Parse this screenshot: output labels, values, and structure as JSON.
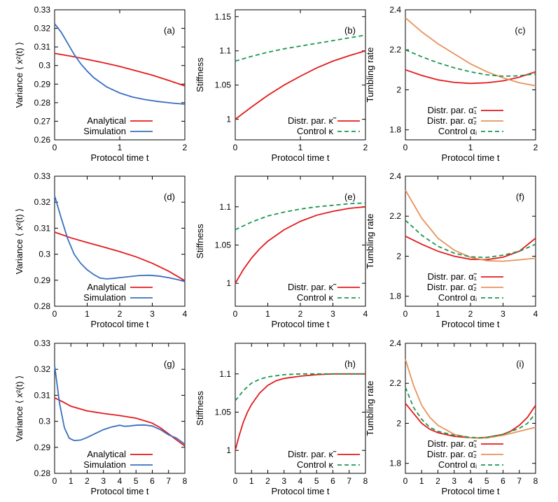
{
  "colors": {
    "red": "#e41a1c",
    "blue": "#3a6fbf",
    "orange": "#e8935a",
    "green": "#1a9850"
  },
  "chart_data": [
    {
      "type": "line",
      "panel_label": "(a)",
      "xlabel": "Protocol time t",
      "ylabel": "Variance  ⟨ x²(t) ⟩",
      "xlim": [
        0,
        2
      ],
      "ylim": [
        0.26,
        0.33
      ],
      "x_ticks": [
        0,
        1,
        2
      ],
      "x_tick_labels": [
        "0",
        "1",
        "2"
      ],
      "y_ticks": [
        0.26,
        0.27,
        0.28,
        0.29,
        0.3,
        0.31,
        0.32,
        0.33
      ],
      "y_tick_labels": [
        "0.26",
        "0.27",
        "0.28",
        "0.29",
        "0.3",
        "0.31",
        "0.32",
        "0.33"
      ],
      "legend_position": "bottom-left",
      "series": [
        {
          "name": "Analytical",
          "color": "red",
          "dash": false,
          "x": [
            0,
            0.25,
            0.5,
            0.75,
            1,
            1.25,
            1.5,
            1.75,
            2
          ],
          "y": [
            0.3065,
            0.305,
            0.3033,
            0.3015,
            0.2995,
            0.2972,
            0.2948,
            0.292,
            0.289
          ]
        },
        {
          "name": "Simulation",
          "color": "blue",
          "dash": false,
          "x": [
            0,
            0.1,
            0.2,
            0.3,
            0.4,
            0.5,
            0.6,
            0.8,
            1,
            1.2,
            1.4,
            1.6,
            1.8,
            2
          ],
          "y": [
            0.3225,
            0.318,
            0.312,
            0.306,
            0.301,
            0.297,
            0.2935,
            0.2885,
            0.2852,
            0.283,
            0.2816,
            0.2806,
            0.2798,
            0.2792
          ]
        }
      ]
    },
    {
      "type": "line",
      "panel_label": "(b)",
      "xlabel": "Protocol time t",
      "ylabel": "Stiffness",
      "xlim": [
        0,
        2
      ],
      "ylim": [
        0.97,
        1.16
      ],
      "x_ticks": [
        0,
        1,
        2
      ],
      "x_tick_labels": [
        "0",
        "1",
        "2"
      ],
      "y_ticks": [
        1,
        1.05,
        1.1,
        1.15
      ],
      "y_tick_labels": [
        "1",
        "1.05",
        "1.1",
        "1.15"
      ],
      "legend_position": "bottom-right",
      "series": [
        {
          "name": "Distr. par. κ̃",
          "color": "red",
          "dash": false,
          "x": [
            0,
            0.25,
            0.5,
            0.75,
            1,
            1.25,
            1.5,
            1.75,
            2
          ],
          "y": [
            1.0,
            1.018,
            1.035,
            1.05,
            1.063,
            1.075,
            1.085,
            1.093,
            1.1
          ]
        },
        {
          "name": "Control κ",
          "color": "green",
          "dash": true,
          "x": [
            0,
            0.25,
            0.5,
            0.75,
            1,
            1.25,
            1.5,
            1.75,
            2
          ],
          "y": [
            1.085,
            1.092,
            1.098,
            1.103,
            1.107,
            1.111,
            1.115,
            1.119,
            1.123
          ]
        }
      ]
    },
    {
      "type": "line",
      "panel_label": "(c)",
      "xlabel": "Protocol time t",
      "ylabel": "Tumbling rate",
      "xlim": [
        0,
        2
      ],
      "ylim": [
        1.75,
        2.4
      ],
      "x_ticks": [
        0,
        1,
        2
      ],
      "x_tick_labels": [
        "0",
        "1",
        "2"
      ],
      "y_ticks": [
        1.8,
        2,
        2.2,
        2.4
      ],
      "y_tick_labels": [
        "1.8",
        "2",
        "2.2",
        "2.4"
      ],
      "legend_position": "bottom-left",
      "series": [
        {
          "name": "Distr. par. α̃₁",
          "color": "red",
          "dash": false,
          "x": [
            0,
            0.25,
            0.5,
            0.75,
            1,
            1.25,
            1.5,
            1.75,
            2
          ],
          "y": [
            2.1,
            2.072,
            2.05,
            2.037,
            2.032,
            2.035,
            2.045,
            2.063,
            2.09
          ]
        },
        {
          "name": "Distr. par. α̃₂",
          "color": "orange",
          "dash": false,
          "x": [
            0,
            0.25,
            0.5,
            0.75,
            1,
            1.25,
            1.5,
            1.75,
            2
          ],
          "y": [
            2.36,
            2.29,
            2.23,
            2.18,
            2.13,
            2.09,
            2.06,
            2.035,
            2.02
          ]
        },
        {
          "name": "Control αᵢ",
          "color": "green",
          "dash": true,
          "x": [
            0,
            0.25,
            0.5,
            0.75,
            1,
            1.25,
            1.5,
            1.75,
            2
          ],
          "y": [
            2.2,
            2.165,
            2.135,
            2.11,
            2.09,
            2.075,
            2.068,
            2.07,
            2.08
          ]
        }
      ]
    },
    {
      "type": "line",
      "panel_label": "(d)",
      "xlabel": "Protocol time t",
      "ylabel": "Variance  ⟨ x²(t) ⟩",
      "xlim": [
        0,
        4
      ],
      "ylim": [
        0.28,
        0.33
      ],
      "x_ticks": [
        0,
        1,
        2,
        3,
        4
      ],
      "x_tick_labels": [
        "0",
        "1",
        "2",
        "3",
        "4"
      ],
      "y_ticks": [
        0.28,
        0.29,
        0.3,
        0.31,
        0.32,
        0.33
      ],
      "y_tick_labels": [
        "0.28",
        "0.29",
        "0.3",
        "0.31",
        "0.32",
        "0.33"
      ],
      "legend_position": "bottom-left",
      "series": [
        {
          "name": "Analytical",
          "color": "red",
          "dash": false,
          "x": [
            0,
            0.5,
            1,
            1.5,
            2,
            2.5,
            3,
            3.5,
            4
          ],
          "y": [
            0.3085,
            0.3063,
            0.3045,
            0.3028,
            0.301,
            0.299,
            0.2965,
            0.2935,
            0.2898
          ]
        },
        {
          "name": "Simulation",
          "color": "blue",
          "dash": false,
          "x": [
            0,
            0.2,
            0.4,
            0.6,
            0.8,
            1,
            1.2,
            1.4,
            1.6,
            1.8,
            2,
            2.3,
            2.6,
            2.9,
            3.2,
            3.5,
            3.8,
            4
          ],
          "y": [
            0.3225,
            0.314,
            0.306,
            0.3,
            0.2965,
            0.294,
            0.2922,
            0.2908,
            0.2905,
            0.2907,
            0.291,
            0.2914,
            0.2918,
            0.2919,
            0.2916,
            0.291,
            0.2902,
            0.2895
          ]
        }
      ]
    },
    {
      "type": "line",
      "panel_label": "(e)",
      "xlabel": "Protocol time t",
      "ylabel": "Stiffness",
      "xlim": [
        0,
        4
      ],
      "ylim": [
        0.97,
        1.14
      ],
      "x_ticks": [
        0,
        1,
        2,
        3,
        4
      ],
      "x_tick_labels": [
        "0",
        "1",
        "2",
        "3",
        "4"
      ],
      "y_ticks": [
        1,
        1.05,
        1.1
      ],
      "y_tick_labels": [
        "1",
        "1.05",
        "1.1"
      ],
      "legend_position": "bottom-right",
      "series": [
        {
          "name": "Distr. par. κ̃",
          "color": "red",
          "dash": false,
          "x": [
            0,
            0.25,
            0.5,
            0.75,
            1,
            1.5,
            2,
            2.5,
            3,
            3.5,
            4
          ],
          "y": [
            1.0,
            1.018,
            1.033,
            1.045,
            1.055,
            1.07,
            1.081,
            1.089,
            1.094,
            1.098,
            1.1
          ]
        },
        {
          "name": "Control κ",
          "color": "green",
          "dash": true,
          "x": [
            0,
            0.5,
            1,
            1.5,
            2,
            2.5,
            3,
            3.5,
            4
          ],
          "y": [
            1.07,
            1.08,
            1.088,
            1.093,
            1.097,
            1.1,
            1.102,
            1.104,
            1.105
          ]
        }
      ]
    },
    {
      "type": "line",
      "panel_label": "(f)",
      "xlabel": "Protocol time t",
      "ylabel": "Tumbling rate",
      "xlim": [
        0,
        4
      ],
      "ylim": [
        1.75,
        2.4
      ],
      "x_ticks": [
        0,
        1,
        2,
        3,
        4
      ],
      "x_tick_labels": [
        "0",
        "1",
        "2",
        "3",
        "4"
      ],
      "y_ticks": [
        1.8,
        2,
        2.2,
        2.4
      ],
      "y_tick_labels": [
        "1.8",
        "2",
        "2.2",
        "2.4"
      ],
      "legend_position": "bottom-left",
      "series": [
        {
          "name": "Distr. par. α̃₁",
          "color": "red",
          "dash": false,
          "x": [
            0,
            0.5,
            1,
            1.5,
            2,
            2.5,
            3,
            3.5,
            4
          ],
          "y": [
            2.1,
            2.06,
            2.025,
            2.0,
            1.985,
            1.983,
            1.995,
            2.025,
            2.09
          ]
        },
        {
          "name": "Distr. par. α̃₂",
          "color": "orange",
          "dash": false,
          "x": [
            0,
            0.5,
            1,
            1.5,
            2,
            2.5,
            3,
            3.5,
            4
          ],
          "y": [
            2.33,
            2.19,
            2.09,
            2.03,
            1.995,
            1.978,
            1.975,
            1.982,
            1.99
          ]
        },
        {
          "name": "Control αᵢ",
          "color": "green",
          "dash": true,
          "x": [
            0,
            0.5,
            1,
            1.5,
            2,
            2.5,
            3,
            3.5,
            4
          ],
          "y": [
            2.18,
            2.105,
            2.05,
            2.015,
            1.997,
            1.994,
            2.005,
            2.025,
            2.06
          ]
        }
      ]
    },
    {
      "type": "line",
      "panel_label": "(g)",
      "xlabel": "Protocol time t",
      "ylabel": "Variance  ⟨ x²(t) ⟩",
      "xlim": [
        0,
        8
      ],
      "ylim": [
        0.28,
        0.33
      ],
      "x_ticks": [
        0,
        1,
        2,
        3,
        4,
        5,
        6,
        7,
        8
      ],
      "x_tick_labels": [
        "0",
        "1",
        "2",
        "3",
        "4",
        "5",
        "6",
        "7",
        "8"
      ],
      "y_ticks": [
        0.28,
        0.29,
        0.3,
        0.31,
        0.32,
        0.33
      ],
      "y_tick_labels": [
        "0.28",
        "0.29",
        "0.3",
        "0.31",
        "0.32",
        "0.33"
      ],
      "legend_position": "bottom-left",
      "series": [
        {
          "name": "Analytical",
          "color": "red",
          "dash": false,
          "x": [
            0,
            0.5,
            1,
            2,
            3,
            4,
            5,
            6,
            6.5,
            7,
            7.5,
            8
          ],
          "y": [
            0.309,
            0.3075,
            0.3058,
            0.304,
            0.303,
            0.3022,
            0.3012,
            0.2993,
            0.2975,
            0.2952,
            0.2928,
            0.2905
          ]
        },
        {
          "name": "Simulation",
          "color": "blue",
          "dash": false,
          "x": [
            0,
            0.3,
            0.6,
            0.9,
            1.2,
            1.6,
            2,
            2.5,
            3,
            3.5,
            4,
            4.3,
            4.6,
            5,
            5.5,
            6,
            6.5,
            7,
            7.5,
            8
          ],
          "y": [
            0.3215,
            0.307,
            0.2975,
            0.2935,
            0.2926,
            0.2928,
            0.2938,
            0.2953,
            0.2968,
            0.2978,
            0.2985,
            0.2981,
            0.2982,
            0.2985,
            0.2986,
            0.2982,
            0.2968,
            0.2948,
            0.2935,
            0.2912
          ]
        }
      ]
    },
    {
      "type": "line",
      "panel_label": "(h)",
      "xlabel": "Protocol time t",
      "ylabel": "Stiffness",
      "xlim": [
        0,
        8
      ],
      "ylim": [
        0.97,
        1.14
      ],
      "x_ticks": [
        0,
        1,
        2,
        3,
        4,
        5,
        6,
        7,
        8
      ],
      "x_tick_labels": [
        "0",
        "1",
        "2",
        "3",
        "4",
        "5",
        "6",
        "7",
        "8"
      ],
      "y_ticks": [
        1,
        1.05,
        1.1
      ],
      "y_tick_labels": [
        "1",
        "1.05",
        "1.1"
      ],
      "legend_position": "bottom-right",
      "series": [
        {
          "name": "Distr. par. κ̃",
          "color": "red",
          "dash": false,
          "x": [
            0,
            0.25,
            0.5,
            0.75,
            1,
            1.5,
            2,
            2.5,
            3,
            4,
            5,
            6,
            7,
            8
          ],
          "y": [
            1.0,
            1.02,
            1.037,
            1.05,
            1.06,
            1.075,
            1.085,
            1.091,
            1.094,
            1.097,
            1.099,
            1.1,
            1.1,
            1.1
          ]
        },
        {
          "name": "Control κ",
          "color": "green",
          "dash": true,
          "x": [
            0,
            0.5,
            1,
            1.5,
            2,
            3,
            4,
            5,
            6,
            7,
            8
          ],
          "y": [
            1.065,
            1.078,
            1.088,
            1.093,
            1.096,
            1.099,
            1.1,
            1.1,
            1.1,
            1.1,
            1.1
          ]
        }
      ]
    },
    {
      "type": "line",
      "panel_label": "(i)",
      "xlabel": "Protocol time t",
      "ylabel": "Tumbling rate",
      "xlim": [
        0,
        8
      ],
      "ylim": [
        1.75,
        2.4
      ],
      "x_ticks": [
        0,
        1,
        2,
        3,
        4,
        5,
        6,
        7,
        8
      ],
      "x_tick_labels": [
        "0",
        "1",
        "2",
        "3",
        "4",
        "5",
        "6",
        "7",
        "8"
      ],
      "y_ticks": [
        1.8,
        2,
        2.2,
        2.4
      ],
      "y_tick_labels": [
        "1.8",
        "2",
        "2.2",
        "2.4"
      ],
      "legend_position": "bottom-left",
      "series": [
        {
          "name": "Distr. par. α̃₁",
          "color": "red",
          "dash": false,
          "x": [
            0,
            0.5,
            1,
            1.5,
            2,
            3,
            4,
            4.5,
            5,
            6,
            6.5,
            7,
            7.5,
            8
          ],
          "y": [
            2.1,
            2.05,
            2.0,
            1.97,
            1.953,
            1.935,
            1.928,
            1.927,
            1.93,
            1.945,
            1.962,
            1.99,
            2.03,
            2.09
          ]
        },
        {
          "name": "Distr. par. α̃₂",
          "color": "orange",
          "dash": false,
          "x": [
            0,
            0.5,
            1,
            1.5,
            2,
            3,
            4,
            4.5,
            5,
            6,
            7,
            8
          ],
          "y": [
            2.32,
            2.19,
            2.09,
            2.03,
            1.99,
            1.945,
            1.928,
            1.925,
            1.927,
            1.94,
            1.96,
            1.98
          ]
        },
        {
          "name": "Control αᵢ",
          "color": "green",
          "dash": true,
          "x": [
            0,
            0.5,
            1,
            1.5,
            2,
            3,
            4,
            4.5,
            5,
            6,
            7,
            7.5,
            8
          ],
          "y": [
            2.18,
            2.08,
            2.02,
            1.98,
            1.96,
            1.94,
            1.93,
            1.928,
            1.93,
            1.945,
            1.975,
            2.0,
            2.05
          ]
        }
      ]
    }
  ]
}
